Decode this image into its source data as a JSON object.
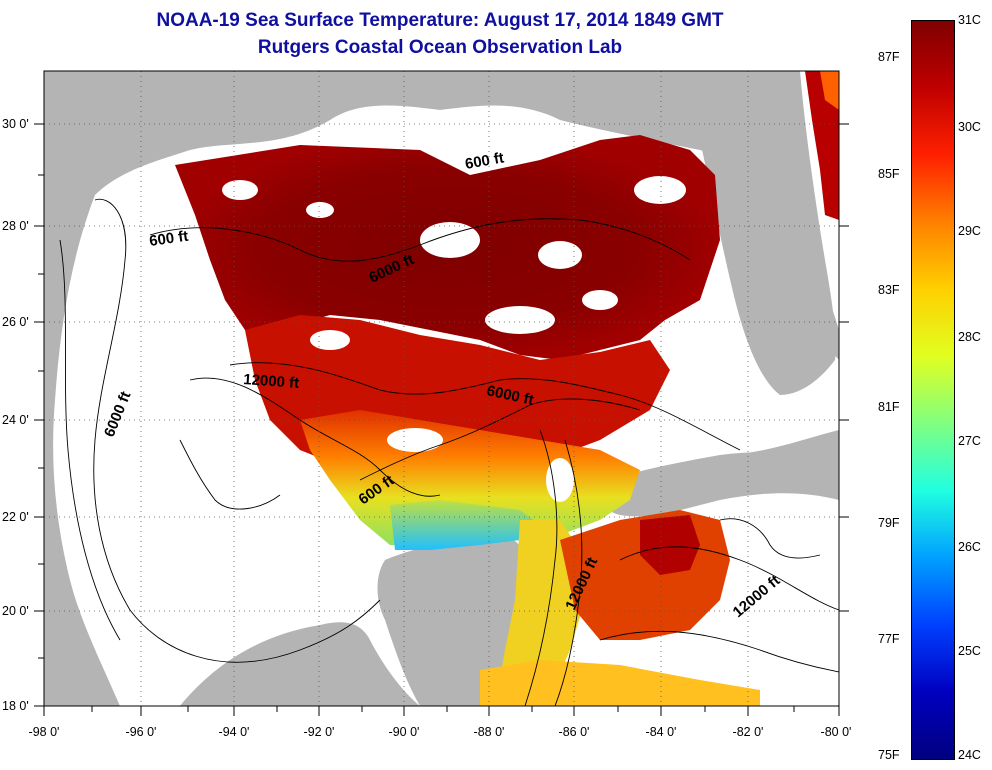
{
  "header": {
    "title": "NOAA-19 Sea Surface Temperature:  August 17, 2014 1849 GMT",
    "subtitle": "Rutgers Coastal Ocean Observation Lab"
  },
  "axes": {
    "x_ticks": [
      "-98 0'",
      "-96 0'",
      "-94 0'",
      "-92 0'",
      "-90 0'",
      "-88 0'",
      "-86 0'",
      "-84 0'",
      "-82 0'",
      "-80 0'"
    ],
    "y_ticks": [
      "30 0'",
      "28 0'",
      "26 0'",
      "24 0'",
      "22 0'",
      "20 0'",
      "18 0'"
    ]
  },
  "contours": {
    "labels": [
      "600 ft",
      "600 ft",
      "6000 ft",
      "12000 ft",
      "6000 ft",
      "6000 ft",
      "600 ft",
      "12000 ft",
      "12000 ft"
    ]
  },
  "colorbar": {
    "celsius": [
      "31C",
      "30C",
      "29C",
      "28C",
      "27C",
      "26C",
      "25C",
      "24C"
    ],
    "fahrenheit": [
      "87F",
      "85F",
      "83F",
      "81F",
      "79F",
      "77F",
      "75F"
    ],
    "colors": [
      "#7f0000",
      "#c00000",
      "#ff2000",
      "#ff8000",
      "#ffd000",
      "#e0ff20",
      "#80ff80",
      "#20ffe0",
      "#00a0ff",
      "#0040ff",
      "#0000c0",
      "#000080"
    ]
  }
}
